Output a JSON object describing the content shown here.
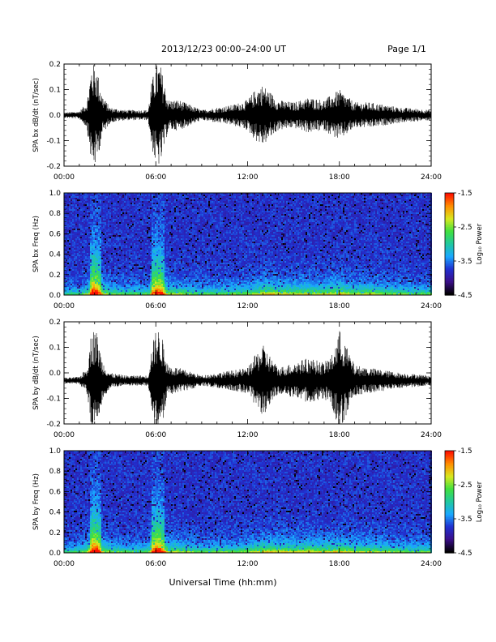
{
  "header": {
    "title": "2013/12/23  00:00–24:00 UT",
    "page": "Page 1/1"
  },
  "x_axis_title": "Universal Time (hh:mm)",
  "colorbar": {
    "label": "Log₁₀ Power",
    "ticks": [
      "-1.5",
      "-2.5",
      "-3.5",
      "-4.5"
    ],
    "range": [
      -4.5,
      -1.5
    ],
    "colors": [
      "#000000",
      "#3b0f8a",
      "#2030d0",
      "#1aa8ff",
      "#20c8a0",
      "#40e040",
      "#d8e820",
      "#ff9000",
      "#ff1000"
    ]
  },
  "chart_data": [
    {
      "type": "line",
      "ylabel": "SPA bx dB/dt (nT/sec)",
      "xlim": [
        0,
        24
      ],
      "ylim": [
        -0.2,
        0.2
      ],
      "xtick_labels": [
        "00:00",
        "06:00",
        "12:00",
        "18:00",
        "24:00"
      ],
      "ytick_labels": [
        "0.2",
        "0.1",
        "0.0",
        "-0.1",
        "-0.2"
      ],
      "series": [
        {
          "color": "#000000",
          "x": [
            0,
            1,
            1.5,
            1.8,
            2.1,
            2.5,
            3,
            4,
            5.5,
            5.7,
            6,
            6.3,
            6.8,
            7.5,
            9,
            11,
            12,
            12.5,
            13,
            14,
            15,
            16,
            17,
            17.5,
            18,
            19,
            20,
            21,
            22,
            24
          ],
          "amp": [
            0.01,
            0.015,
            0.05,
            0.2,
            0.2,
            0.08,
            0.03,
            0.02,
            0.02,
            0.12,
            0.2,
            0.2,
            0.06,
            0.06,
            0.02,
            0.04,
            0.06,
            0.1,
            0.12,
            0.06,
            0.05,
            0.07,
            0.06,
            0.08,
            0.1,
            0.05,
            0.05,
            0.04,
            0.03,
            0.02
          ]
        }
      ]
    },
    {
      "type": "heatmap",
      "ylabel": "SPA bx Freq (Hz)",
      "xlim": [
        0,
        24
      ],
      "ylim": [
        0,
        1.0
      ],
      "xtick_labels": [
        "00:00",
        "06:00",
        "12:00",
        "18:00",
        "24:00"
      ],
      "ytick_labels": [
        "1.0",
        "0.8",
        "0.6",
        "0.4",
        "0.2",
        "0.0"
      ],
      "activity": {
        "x": [
          0,
          1,
          1.5,
          1.8,
          2.1,
          2.5,
          3,
          4,
          5.5,
          5.7,
          6,
          6.3,
          6.8,
          7.5,
          9,
          11,
          12,
          12.5,
          13,
          14,
          15,
          16,
          17,
          17.5,
          18,
          19,
          20,
          21,
          22,
          24
        ],
        "level": [
          0.15,
          0.2,
          0.4,
          1.0,
          1.0,
          0.5,
          0.3,
          0.25,
          0.25,
          0.8,
          0.95,
          0.9,
          0.4,
          0.4,
          0.25,
          0.3,
          0.35,
          0.45,
          0.55,
          0.5,
          0.45,
          0.5,
          0.45,
          0.5,
          0.55,
          0.4,
          0.45,
          0.35,
          0.3,
          0.25
        ]
      }
    },
    {
      "type": "line",
      "ylabel": "SPA by dB/dt (nT/sec)",
      "xlim": [
        0,
        24
      ],
      "ylim": [
        -0.2,
        0.2
      ],
      "xtick_labels": [
        "00:00",
        "06:00",
        "12:00",
        "18:00",
        "24:00"
      ],
      "ytick_labels": [
        "0.2",
        "0.1",
        "0.0",
        "-0.1",
        "-0.2"
      ],
      "series": [
        {
          "color": "#000000",
          "baseline": -0.03,
          "x": [
            0,
            1,
            1.5,
            1.8,
            2.1,
            2.5,
            3,
            4,
            5.5,
            5.7,
            6,
            6.3,
            6.8,
            7.5,
            9,
            11,
            12,
            12.5,
            13,
            14,
            15,
            16,
            17,
            17.5,
            18,
            19,
            20,
            21,
            22,
            24
          ],
          "amp": [
            0.01,
            0.015,
            0.05,
            0.2,
            0.2,
            0.08,
            0.03,
            0.02,
            0.02,
            0.12,
            0.2,
            0.2,
            0.06,
            0.05,
            0.02,
            0.04,
            0.05,
            0.1,
            0.14,
            0.05,
            0.07,
            0.09,
            0.07,
            0.1,
            0.2,
            0.06,
            0.05,
            0.04,
            0.03,
            0.02
          ]
        }
      ]
    },
    {
      "type": "heatmap",
      "ylabel": "SPA by Freq (Hz)",
      "xlim": [
        0,
        24
      ],
      "ylim": [
        0,
        1.0
      ],
      "xtick_labels": [
        "00:00",
        "06:00",
        "12:00",
        "18:00",
        "24:00"
      ],
      "ytick_labels": [
        "1.0",
        "0.8",
        "0.6",
        "0.4",
        "0.2",
        "0.0"
      ],
      "activity": {
        "x": [
          0,
          1,
          1.5,
          1.8,
          2.1,
          2.5,
          3,
          4,
          5.5,
          5.7,
          6,
          6.3,
          6.8,
          7.5,
          9,
          11,
          12,
          12.5,
          13,
          14,
          15,
          16,
          17,
          17.5,
          18,
          19,
          20,
          21,
          22,
          24
        ],
        "level": [
          0.15,
          0.2,
          0.4,
          1.0,
          1.0,
          0.5,
          0.3,
          0.25,
          0.25,
          0.8,
          0.95,
          0.9,
          0.4,
          0.4,
          0.25,
          0.3,
          0.35,
          0.45,
          0.55,
          0.5,
          0.45,
          0.5,
          0.45,
          0.5,
          0.55,
          0.4,
          0.45,
          0.35,
          0.3,
          0.25
        ]
      }
    }
  ]
}
